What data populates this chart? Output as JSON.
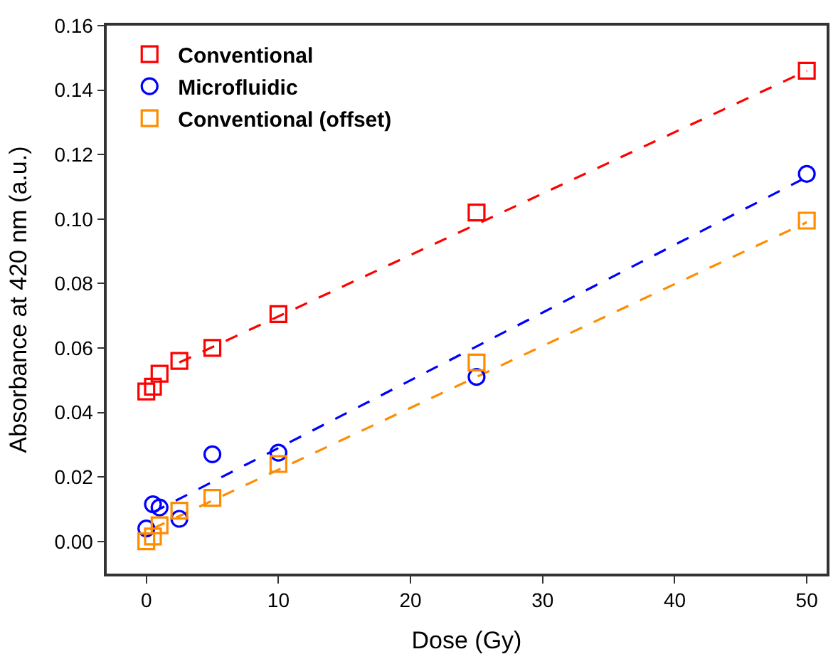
{
  "chart_data": {
    "type": "scatter",
    "xlabel": "Dose (Gy)",
    "ylabel": "Absorbance at 420 nm (a.u.)",
    "x": [
      0,
      0.5,
      1,
      2.5,
      5,
      10,
      25,
      50
    ],
    "series": [
      {
        "name": "Conventional",
        "color": "#ff0000",
        "marker": "square",
        "values": [
          0.0465,
          0.048,
          0.052,
          0.056,
          0.06,
          0.0705,
          0.102,
          0.146
        ]
      },
      {
        "name": "Microfluidic",
        "color": "#0000ff",
        "marker": "circle",
        "values": [
          0.004,
          0.0115,
          0.0105,
          0.007,
          0.027,
          0.0275,
          0.051,
          0.114
        ]
      },
      {
        "name": "Conventional (offset)",
        "color": "#ff8c00",
        "marker": "square",
        "values": [
          0.0,
          0.0015,
          0.005,
          0.0095,
          0.0135,
          0.024,
          0.0555,
          0.0995
        ]
      },
      {
        "type": "line",
        "color": "#ff0000",
        "line_style": "dashed",
        "x": [
          2.5,
          50
        ],
        "values": [
          0.0555,
          0.146
        ]
      },
      {
        "type": "line",
        "color": "#0000ff",
        "line_style": "dashed",
        "x": [
          0.5,
          50
        ],
        "values": [
          0.009,
          0.113
        ]
      },
      {
        "type": "line",
        "color": "#ff8c00",
        "line_style": "dashed",
        "x": [
          0.5,
          50
        ],
        "values": [
          0.004,
          0.099
        ]
      }
    ],
    "xlim": [
      -3,
      51.5
    ],
    "ylim": [
      -0.01,
      0.16
    ],
    "xticks": [
      0,
      10,
      20,
      30,
      40,
      50
    ],
    "yticks": [
      {
        "value": 0,
        "label": "0.00"
      },
      {
        "value": 0.02,
        "label": "0.02"
      },
      {
        "value": 0.04,
        "label": "0.04"
      },
      {
        "value": 0.06,
        "label": "0.06"
      },
      {
        "value": 0.08,
        "label": "0.08"
      },
      {
        "value": 0.1,
        "label": "0.10"
      },
      {
        "value": 0.12,
        "label": "0.12"
      },
      {
        "value": 0.14,
        "label": "0.14"
      },
      {
        "value": 0.16,
        "label": "0.16"
      }
    ],
    "legend": "top left"
  }
}
